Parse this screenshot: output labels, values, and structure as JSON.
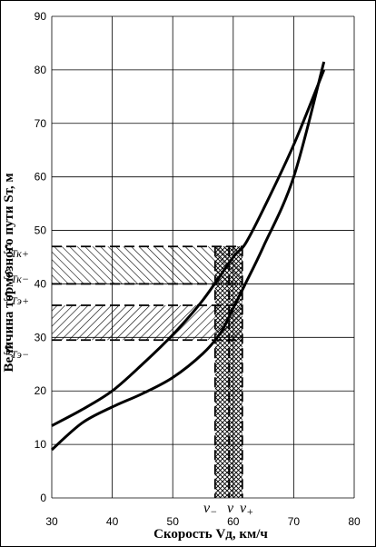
{
  "chart_data": {
    "type": "line",
    "title": "",
    "xlabel": "Скорость Vд, км/ч",
    "ylabel": "Величина тормозного пути Sт, м",
    "xlim": [
      30,
      80
    ],
    "ylim": [
      0,
      90
    ],
    "xticks": [
      "30",
      "40",
      "50",
      "60",
      "70",
      "80"
    ],
    "yticks": [
      "0",
      "10",
      "20",
      "30",
      "40",
      "50",
      "60",
      "70",
      "80",
      "90"
    ],
    "grid": true,
    "legend": "none",
    "series": [
      {
        "x": [
          30,
          35,
          40,
          45,
          50,
          55,
          60,
          62,
          65,
          70,
          75
        ],
        "y": [
          13.5,
          16.5,
          20,
          25,
          30.5,
          37,
          45,
          47.5,
          54,
          66,
          80
        ]
      },
      {
        "x": [
          30,
          35,
          40,
          45,
          50,
          55,
          58,
          60,
          62,
          65,
          70,
          75
        ],
        "y": [
          9,
          14,
          17,
          19.5,
          22.5,
          27,
          31,
          35.5,
          40,
          47,
          60,
          81.5
        ]
      }
    ],
    "bands": {
      "S_tk": {
        "y": [
          40,
          47
        ],
        "label_upper": "S",
        "sub_upper": "Тк+",
        "label_lower": "S",
        "sub_lower": "Тк−"
      },
      "S_te": {
        "y": [
          29.5,
          36
        ],
        "label_upper": "S",
        "sub_upper": "Тэ+",
        "label_lower": "S",
        "sub_lower": "Тэ−"
      },
      "v_band": {
        "x": [
          57,
          61.5
        ]
      },
      "v_mid": 59.3
    },
    "v_labels": {
      "minus": "v",
      "minus_sub": "−",
      "mid": "v",
      "plus": "v",
      "plus_sub": "+"
    }
  }
}
